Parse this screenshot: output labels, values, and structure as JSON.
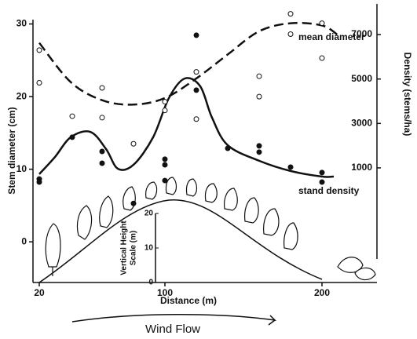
{
  "chart_data": {
    "type": "scatter",
    "xlabel": "Distance (m)",
    "ylabel": "Stem diameter (cm)",
    "y2label": "Density (stems/ha)",
    "xlim": [
      16,
      235
    ],
    "xticks": [
      20,
      100,
      200
    ],
    "ylim": [
      -5.6,
      30.6
    ],
    "yticks": [
      0,
      10,
      20,
      30
    ],
    "y2lim": [
      -3100,
      8380
    ],
    "y2ticks": [
      1000,
      3000,
      5000,
      7000
    ],
    "color": "#111111",
    "series": [
      {
        "marker": "open",
        "axis": "y",
        "x": [
          20,
          20,
          41,
          60,
          60,
          80,
          100,
          100,
          120,
          120,
          160,
          160,
          180,
          180,
          200,
          200
        ],
        "values": [
          26.4,
          21.9,
          17.3,
          21.2,
          17.1,
          13.5,
          19.3,
          18.1,
          23.4,
          16.9,
          22.8,
          20.0,
          31.4,
          28.6,
          30.1,
          25.3
        ]
      },
      {
        "marker": "filled",
        "axis": "y2",
        "x": [
          20,
          20,
          41,
          60,
          60,
          80,
          100,
          100,
          100,
          120,
          120,
          140,
          160,
          160,
          180,
          200,
          200
        ],
        "values": [
          500,
          360,
          2380,
          1740,
          1210,
          -600,
          1390,
          1140,
          430,
          6970,
          4500,
          1880,
          1990,
          1710,
          1035,
          790,
          360
        ]
      }
    ],
    "curves": [
      {
        "style": "dashed",
        "axis": "y",
        "x": [
          20,
          40,
          60,
          80,
          100,
          120,
          140,
          160,
          180,
          200,
          210
        ],
        "values": [
          27.4,
          22.0,
          19.5,
          18.9,
          19.8,
          22.5,
          25.8,
          29.0,
          30.1,
          29.8,
          28.5
        ]
      },
      {
        "style": "solid",
        "axis": "y2",
        "x": [
          20,
          30,
          40,
          52.5,
          62.5,
          70,
          80,
          92.5,
          102.5,
          112.5,
          122.5,
          130,
          140,
          160,
          180,
          200,
          207.5
        ],
        "values": [
          720,
          1490,
          2380,
          2620,
          1850,
          965,
          1140,
          2380,
          4140,
          5020,
          4670,
          3260,
          2020,
          1320,
          860,
          610,
          610
        ]
      }
    ],
    "annotations": [
      "mean diameter",
      "stand density"
    ],
    "height_scale": {
      "label": [
        "Vertical Height",
        "Scale (m)"
      ],
      "ticks": [
        0,
        10,
        20
      ]
    },
    "wind_label": "Wind Flow"
  }
}
